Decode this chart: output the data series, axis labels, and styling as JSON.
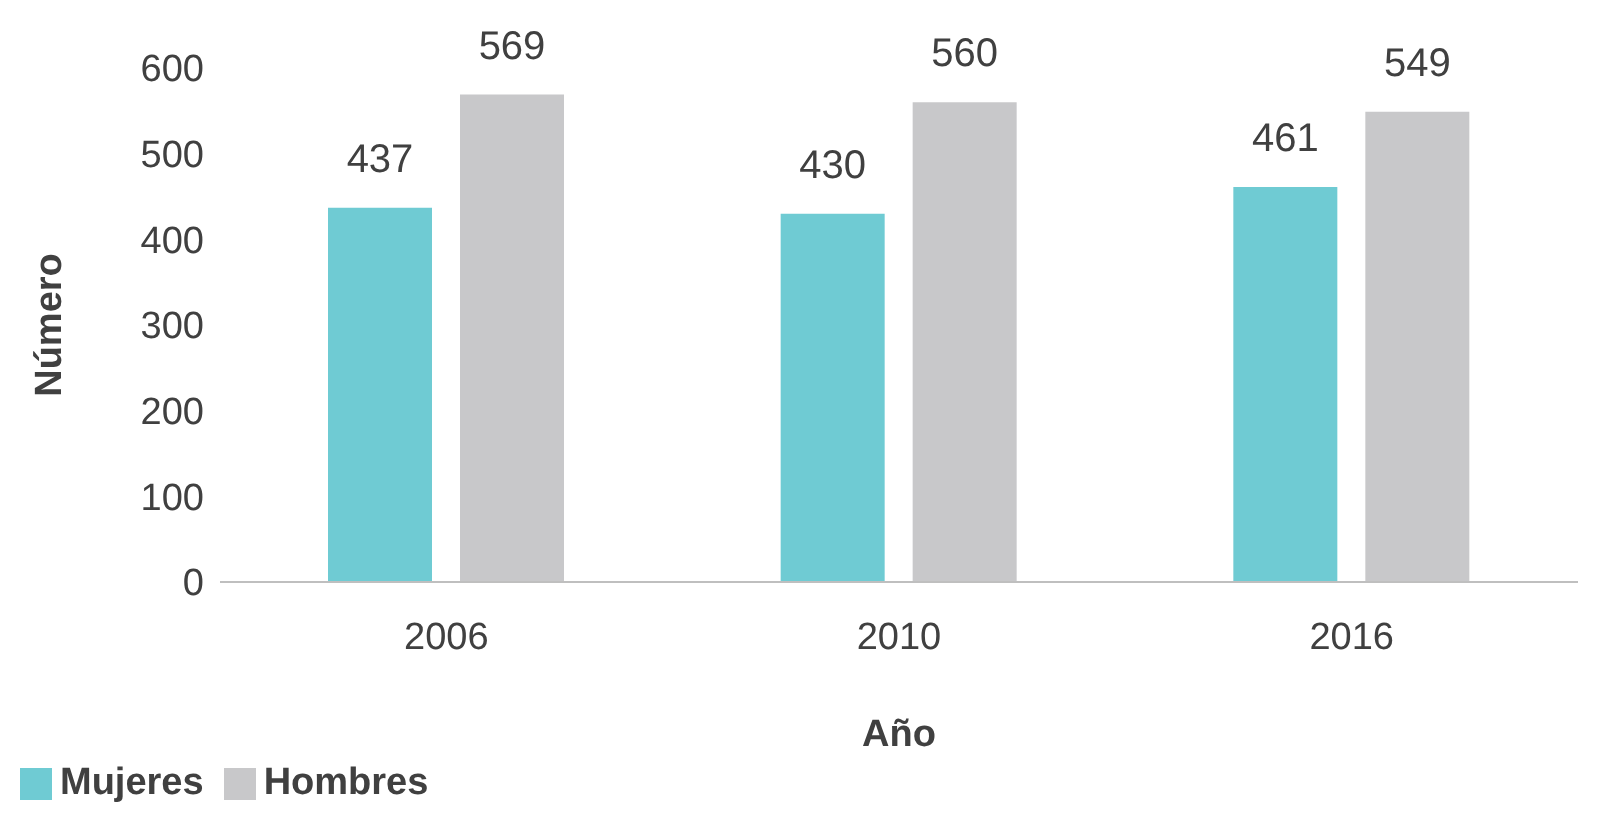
{
  "chart_data": {
    "type": "bar",
    "xlabel": "Año",
    "ylabel": "Número",
    "categories": [
      "2006",
      "2010",
      "2016"
    ],
    "series": [
      {
        "name": "Mujeres",
        "color": "#6fcbd3",
        "values": [
          437,
          430,
          461
        ]
      },
      {
        "name": "Hombres",
        "color": "#c8c8ca",
        "values": [
          569,
          560,
          549
        ]
      }
    ],
    "ylim": [
      0,
      600
    ],
    "yticks": [
      0,
      100,
      200,
      300,
      400,
      500,
      600
    ],
    "data_labels": true,
    "grid": false,
    "legend": "bottom left"
  }
}
